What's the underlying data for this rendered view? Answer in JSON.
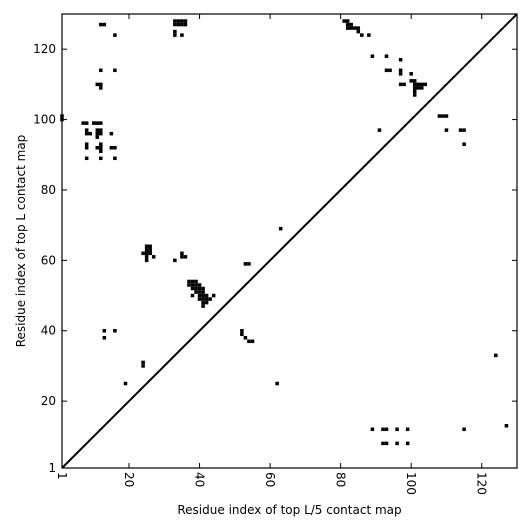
{
  "chart_data": {
    "type": "heatmap",
    "xlabel": "Residue index of top L/5 contact map",
    "ylabel": "Residue index of top L contact map",
    "xlim": [
      1,
      130
    ],
    "ylim": [
      1,
      130
    ],
    "x_ticks": [
      1,
      20,
      40,
      60,
      80,
      100,
      120
    ],
    "y_ticks": [
      1,
      20,
      40,
      60,
      80,
      100,
      120
    ],
    "x_tick_labels": [
      "1",
      "20",
      "40",
      "60",
      "80",
      "100",
      "120"
    ],
    "y_tick_labels": [
      "1",
      "20",
      "40",
      "60",
      "80",
      "100",
      "120"
    ],
    "x_tick_rotation": 90,
    "grid": false,
    "legend": "none",
    "diagonal": {
      "from": [
        1,
        1
      ],
      "to": [
        130,
        130
      ]
    },
    "cell_color": "#000000",
    "background_color": "#ffffff",
    "upper_triangle_points": [
      [
        1,
        100
      ],
      [
        1,
        101
      ],
      [
        7,
        99
      ],
      [
        8,
        99
      ],
      [
        8,
        97
      ],
      [
        8,
        96
      ],
      [
        9,
        96
      ],
      [
        8,
        93
      ],
      [
        8,
        92
      ],
      [
        8,
        89
      ],
      [
        10,
        99
      ],
      [
        11,
        99
      ],
      [
        12,
        99
      ],
      [
        11,
        97
      ],
      [
        12,
        97
      ],
      [
        11,
        96
      ],
      [
        12,
        96
      ],
      [
        11,
        95
      ],
      [
        12,
        93
      ],
      [
        11,
        92
      ],
      [
        12,
        92
      ],
      [
        12,
        91
      ],
      [
        12,
        89
      ],
      [
        11,
        110
      ],
      [
        12,
        110
      ],
      [
        12,
        109
      ],
      [
        12,
        127
      ],
      [
        13,
        127
      ],
      [
        12,
        114
      ],
      [
        16,
        114
      ],
      [
        16,
        124
      ],
      [
        15,
        96
      ],
      [
        15,
        92
      ],
      [
        16,
        92
      ],
      [
        16,
        89
      ],
      [
        13,
        40
      ],
      [
        13,
        38
      ],
      [
        16,
        40
      ],
      [
        19,
        25
      ],
      [
        24,
        31
      ],
      [
        24,
        30
      ],
      [
        24,
        62
      ],
      [
        25,
        62
      ],
      [
        25,
        63
      ],
      [
        25,
        64
      ],
      [
        26,
        62
      ],
      [
        26,
        63
      ],
      [
        26,
        64
      ],
      [
        25,
        61
      ],
      [
        25,
        60
      ],
      [
        27,
        61
      ],
      [
        33,
        60
      ],
      [
        35,
        62
      ],
      [
        35,
        61
      ],
      [
        36,
        61
      ],
      [
        33,
        128
      ],
      [
        34,
        128
      ],
      [
        35,
        128
      ],
      [
        36,
        128
      ],
      [
        33,
        127
      ],
      [
        34,
        127
      ],
      [
        35,
        127
      ],
      [
        36,
        127
      ],
      [
        33,
        125
      ],
      [
        33,
        124
      ],
      [
        35,
        124
      ],
      [
        37,
        54
      ],
      [
        38,
        54
      ],
      [
        39,
        54
      ],
      [
        37,
        53
      ],
      [
        38,
        53
      ],
      [
        39,
        53
      ],
      [
        40,
        53
      ],
      [
        38,
        52
      ],
      [
        39,
        52
      ],
      [
        40,
        52
      ],
      [
        41,
        52
      ],
      [
        39,
        51
      ],
      [
        40,
        51
      ],
      [
        41,
        51
      ],
      [
        40,
        50
      ],
      [
        41,
        50
      ],
      [
        42,
        50
      ],
      [
        38,
        50
      ],
      [
        40,
        49
      ],
      [
        41,
        49
      ],
      [
        42,
        49
      ],
      [
        43,
        49
      ],
      [
        41,
        48
      ],
      [
        42,
        48
      ],
      [
        41,
        47
      ],
      [
        44,
        50
      ],
      [
        52,
        40
      ],
      [
        52,
        39
      ],
      [
        53,
        59
      ],
      [
        54,
        59
      ],
      [
        53,
        38
      ],
      [
        54,
        37
      ],
      [
        55,
        37
      ],
      [
        62,
        25
      ],
      [
        63,
        69
      ],
      [
        81,
        128
      ],
      [
        82,
        128
      ],
      [
        82,
        127
      ],
      [
        83,
        127
      ],
      [
        82,
        126
      ],
      [
        83,
        126
      ],
      [
        84,
        126
      ],
      [
        85,
        126
      ],
      [
        85,
        125
      ],
      [
        86,
        124
      ],
      [
        88,
        124
      ],
      [
        89,
        118
      ],
      [
        93,
        118
      ],
      [
        93,
        114
      ],
      [
        94,
        114
      ],
      [
        97,
        117
      ],
      [
        97,
        114
      ],
      [
        97,
        113
      ],
      [
        97,
        110
      ],
      [
        98,
        110
      ],
      [
        100,
        111
      ],
      [
        100,
        113
      ],
      [
        101,
        111
      ],
      [
        101,
        110
      ],
      [
        102,
        110
      ],
      [
        103,
        110
      ],
      [
        104,
        110
      ],
      [
        101,
        109
      ],
      [
        102,
        109
      ],
      [
        101,
        108
      ],
      [
        101,
        107
      ],
      [
        103,
        109
      ],
      [
        91,
        97
      ],
      [
        108,
        101
      ],
      [
        109,
        101
      ],
      [
        110,
        101
      ],
      [
        110,
        97
      ],
      [
        114,
        97
      ],
      [
        115,
        97
      ],
      [
        115,
        93
      ]
    ],
    "lower_triangle_points": [
      [
        89,
        12
      ],
      [
        92,
        12
      ],
      [
        93,
        12
      ],
      [
        96,
        12
      ],
      [
        99,
        12
      ],
      [
        92,
        8
      ],
      [
        93,
        8
      ],
      [
        96,
        8
      ],
      [
        99,
        8
      ],
      [
        115,
        12
      ],
      [
        124,
        33
      ],
      [
        127,
        13
      ]
    ]
  }
}
